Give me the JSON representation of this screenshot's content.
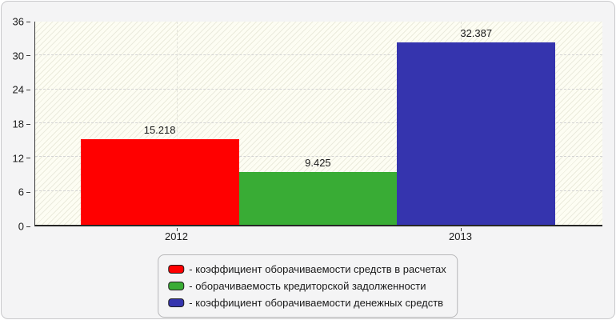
{
  "chart_data": {
    "type": "bar",
    "title": "",
    "categories": [
      "2012",
      "2013"
    ],
    "x_tick_positions_pct": [
      25,
      75
    ],
    "ylim": [
      0,
      36
    ],
    "yticks": [
      0,
      6,
      12,
      18,
      24,
      30,
      36
    ],
    "grid": "dashed horizontal lines at every y tick; faint dashed vertical lines at category ticks",
    "legend_position": "bottom-center",
    "bars": [
      {
        "name": "коэффициент оборачиваемости средств в расчетах",
        "value": 15.218,
        "label": "15.218",
        "color": "#ff0000",
        "left_pct": 8.0,
        "width_pct": 27.9
      },
      {
        "name": "оборачиваемость кредиторской задолженности",
        "value": 9.425,
        "label": "9.425",
        "color": "#39ac35",
        "left_pct": 35.9,
        "width_pct": 27.9
      },
      {
        "name": "коэффициент оборачиваемости денежных средств",
        "value": 32.387,
        "label": "32.387",
        "color": "#3534ae",
        "left_pct": 63.8,
        "width_pct": 27.9
      }
    ],
    "legend": [
      {
        "label": "- коэффициент оборачиваемости средств в расчетах",
        "color": "#ff0000"
      },
      {
        "label": "- оборачиваемость кредиторской задолженности",
        "color": "#39ac35"
      },
      {
        "label": "- коэффициент оборачиваемости денежных средств",
        "color": "#3534ae"
      }
    ],
    "colors": {
      "panel_bg": "#f4f4f5",
      "plot_bg": "#fdfdf3",
      "axis": "#2b2b2b",
      "gridline": "#d4d4d4",
      "text": "#1a1a1a"
    }
  }
}
